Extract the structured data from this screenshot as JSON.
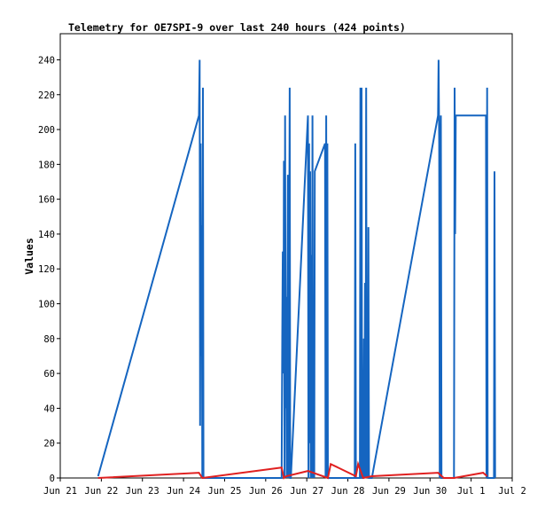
{
  "chart_data": {
    "type": "line",
    "title": "Telemetry for OE7SPI-9 over last 240 hours (424 points)",
    "xlabel": "",
    "ylabel": "Values",
    "x_ticks": [
      "Jun 21",
      "Jun 22",
      "Jun 23",
      "Jun 24",
      "Jun 25",
      "Jun 26",
      "Jun 27",
      "Jun 28",
      "Jun 29",
      "Jun 30",
      "Jul 1",
      "Jul 2"
    ],
    "xlim": [
      "Jun 21 00:00",
      "Jul 2 00:00"
    ],
    "ylim": [
      0,
      255
    ],
    "y_ticks": [
      0,
      20,
      40,
      60,
      80,
      100,
      120,
      140,
      160,
      180,
      200,
      220,
      240
    ],
    "grid": false,
    "series": [
      {
        "color": "#1565c0",
        "points": [
          [
            "Jun 21 22:05",
            1
          ],
          [
            "Jun 24 09:00",
            208
          ],
          [
            "Jun 24 09:25",
            240
          ],
          [
            "Jun 24 09:40",
            30
          ],
          [
            "Jun 24 10:00",
            192
          ],
          [
            "Jun 24 10:20",
            70
          ],
          [
            "Jun 24 10:40",
            145
          ],
          [
            "Jun 24 11:00",
            0
          ],
          [
            "Jun 24 11:20",
            224
          ],
          [
            "Jun 24 11:40",
            0
          ],
          [
            "Jun 26 09:20",
            0
          ],
          [
            "Jun 26 09:40",
            80
          ],
          [
            "Jun 26 10:00",
            130
          ],
          [
            "Jun 26 10:20",
            60
          ],
          [
            "Jun 26 10:40",
            182
          ],
          [
            "Jun 26 11:00",
            0
          ],
          [
            "Jun 26 11:20",
            208
          ],
          [
            "Jun 26 11:40",
            40
          ],
          [
            "Jun 26 12:00",
            104
          ],
          [
            "Jun 26 12:20",
            0
          ],
          [
            "Jun 26 13:00",
            174
          ],
          [
            "Jun 26 13:20",
            0
          ],
          [
            "Jun 26 14:00",
            224
          ],
          [
            "Jun 26 14:20",
            0
          ],
          [
            "Jun 26 14:40",
            0
          ],
          [
            "Jun 27 00:40",
            208
          ],
          [
            "Jun 27 01:00",
            0
          ],
          [
            "Jun 27 01:20",
            192
          ],
          [
            "Jun 27 01:40",
            20
          ],
          [
            "Jun 27 02:00",
            176
          ],
          [
            "Jun 27 02:20",
            0
          ],
          [
            "Jun 27 02:40",
            128
          ],
          [
            "Jun 27 03:00",
            0
          ],
          [
            "Jun 27 03:20",
            208
          ],
          [
            "Jun 27 03:40",
            0
          ],
          [
            "Jun 27 04:00",
            96
          ],
          [
            "Jun 27 04:20",
            0
          ],
          [
            "Jun 27 04:40",
            176
          ],
          [
            "Jun 27 10:40",
            192
          ],
          [
            "Jun 27 11:00",
            0
          ],
          [
            "Jun 27 11:20",
            208
          ],
          [
            "Jun 27 11:40",
            0
          ],
          [
            "Jun 27 12:00",
            192
          ],
          [
            "Jun 27 12:20",
            0
          ],
          [
            "Jun 28 04:00",
            0
          ],
          [
            "Jun 28 04:20",
            192
          ],
          [
            "Jun 28 04:40",
            0
          ],
          [
            "Jun 28 07:00",
            0
          ],
          [
            "Jun 28 07:20",
            224
          ],
          [
            "Jun 28 07:40",
            0
          ],
          [
            "Jun 28 08:00",
            224
          ],
          [
            "Jun 28 08:20",
            0
          ],
          [
            "Jun 28 09:00",
            0
          ],
          [
            "Jun 28 09:20",
            80
          ],
          [
            "Jun 28 09:40",
            0
          ],
          [
            "Jun 28 10:00",
            112
          ],
          [
            "Jun 28 10:20",
            0
          ],
          [
            "Jun 28 10:40",
            224
          ],
          [
            "Jun 28 11:00",
            0
          ],
          [
            "Jun 28 11:20",
            80
          ],
          [
            "Jun 28 11:40",
            0
          ],
          [
            "Jun 28 12:00",
            144
          ],
          [
            "Jun 28 12:20",
            0
          ],
          [
            "Jun 28 14:00",
            0
          ],
          [
            "Jun 30 04:40",
            208
          ],
          [
            "Jun 30 05:00",
            240
          ],
          [
            "Jun 30 05:20",
            192
          ],
          [
            "Jun 30 05:40",
            0
          ],
          [
            "Jun 30 06:00",
            160
          ],
          [
            "Jun 30 06:20",
            208
          ],
          [
            "Jun 30 06:40",
            0
          ],
          [
            "Jun 30 14:00",
            0
          ],
          [
            "Jun 30 14:20",
            224
          ],
          [
            "Jun 30 14:40",
            140
          ],
          [
            "Jun 30 15:00",
            208
          ],
          [
            "Jul 1 08:40",
            208
          ],
          [
            "Jul 1 09:00",
            0
          ],
          [
            "Jul 1 09:20",
            224
          ],
          [
            "Jul 1 09:40",
            0
          ],
          [
            "Jul 1 13:20",
            0
          ],
          [
            "Jul 1 13:40",
            176
          ],
          [
            "Jul 1 14:00",
            0
          ]
        ]
      },
      {
        "color": "#e02020",
        "points": [
          [
            "Jun 21 22:05",
            0
          ],
          [
            "Jun 24 09:00",
            3
          ],
          [
            "Jun 24 11:00",
            0
          ],
          [
            "Jun 26 09:20",
            6
          ],
          [
            "Jun 26 10:40",
            0
          ],
          [
            "Jun 26 12:00",
            1
          ],
          [
            "Jun 27 00:40",
            4
          ],
          [
            "Jun 27 12:20",
            0
          ],
          [
            "Jun 27 14:00",
            8
          ],
          [
            "Jun 28 04:40",
            1
          ],
          [
            "Jun 28 06:00",
            8
          ],
          [
            "Jun 28 09:00",
            0
          ],
          [
            "Jun 28 14:00",
            1
          ],
          [
            "Jun 30 04:40",
            3
          ],
          [
            "Jun 30 08:00",
            0
          ],
          [
            "Jun 30 14:00",
            0
          ],
          [
            "Jul 1 07:00",
            3
          ],
          [
            "Jul 1 09:20",
            1
          ]
        ]
      }
    ]
  }
}
